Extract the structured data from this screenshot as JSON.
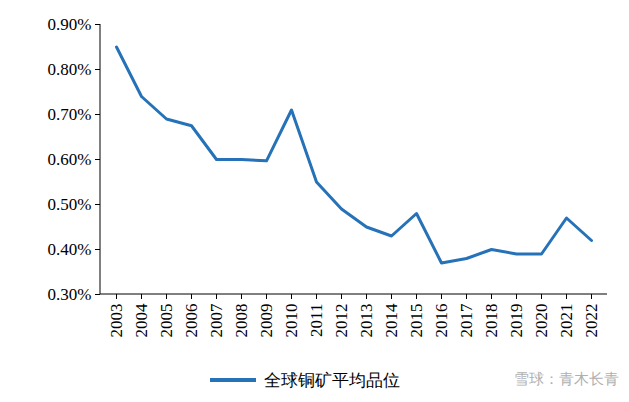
{
  "chart_data": {
    "type": "line",
    "categories": [
      "2003",
      "2004",
      "2005",
      "2006",
      "2007",
      "2008",
      "2009",
      "2010",
      "2011",
      "2012",
      "2013",
      "2014",
      "2015",
      "2016",
      "2017",
      "2018",
      "2019",
      "2020",
      "2021",
      "2022"
    ],
    "series": [
      {
        "name": "全球铜矿平均品位",
        "color": "#2672b8",
        "values": [
          0.85,
          0.74,
          0.69,
          0.675,
          0.6,
          0.6,
          0.597,
          0.71,
          0.55,
          0.49,
          0.45,
          0.43,
          0.48,
          0.37,
          0.38,
          0.4,
          0.39,
          0.39,
          0.47,
          0.42
        ]
      }
    ],
    "ylim": [
      0.3,
      0.9
    ],
    "yticks": [
      {
        "value": 0.3,
        "label": "0.30%"
      },
      {
        "value": 0.4,
        "label": "0.40%"
      },
      {
        "value": 0.5,
        "label": "0.50%"
      },
      {
        "value": 0.6,
        "label": "0.60%"
      },
      {
        "value": 0.7,
        "label": "0.70%"
      },
      {
        "value": 0.8,
        "label": "0.80%"
      },
      {
        "value": 0.9,
        "label": "0.90%"
      }
    ],
    "grid": false,
    "legend": "bottom",
    "annotations": [
      "雪球：青木长青"
    ]
  }
}
